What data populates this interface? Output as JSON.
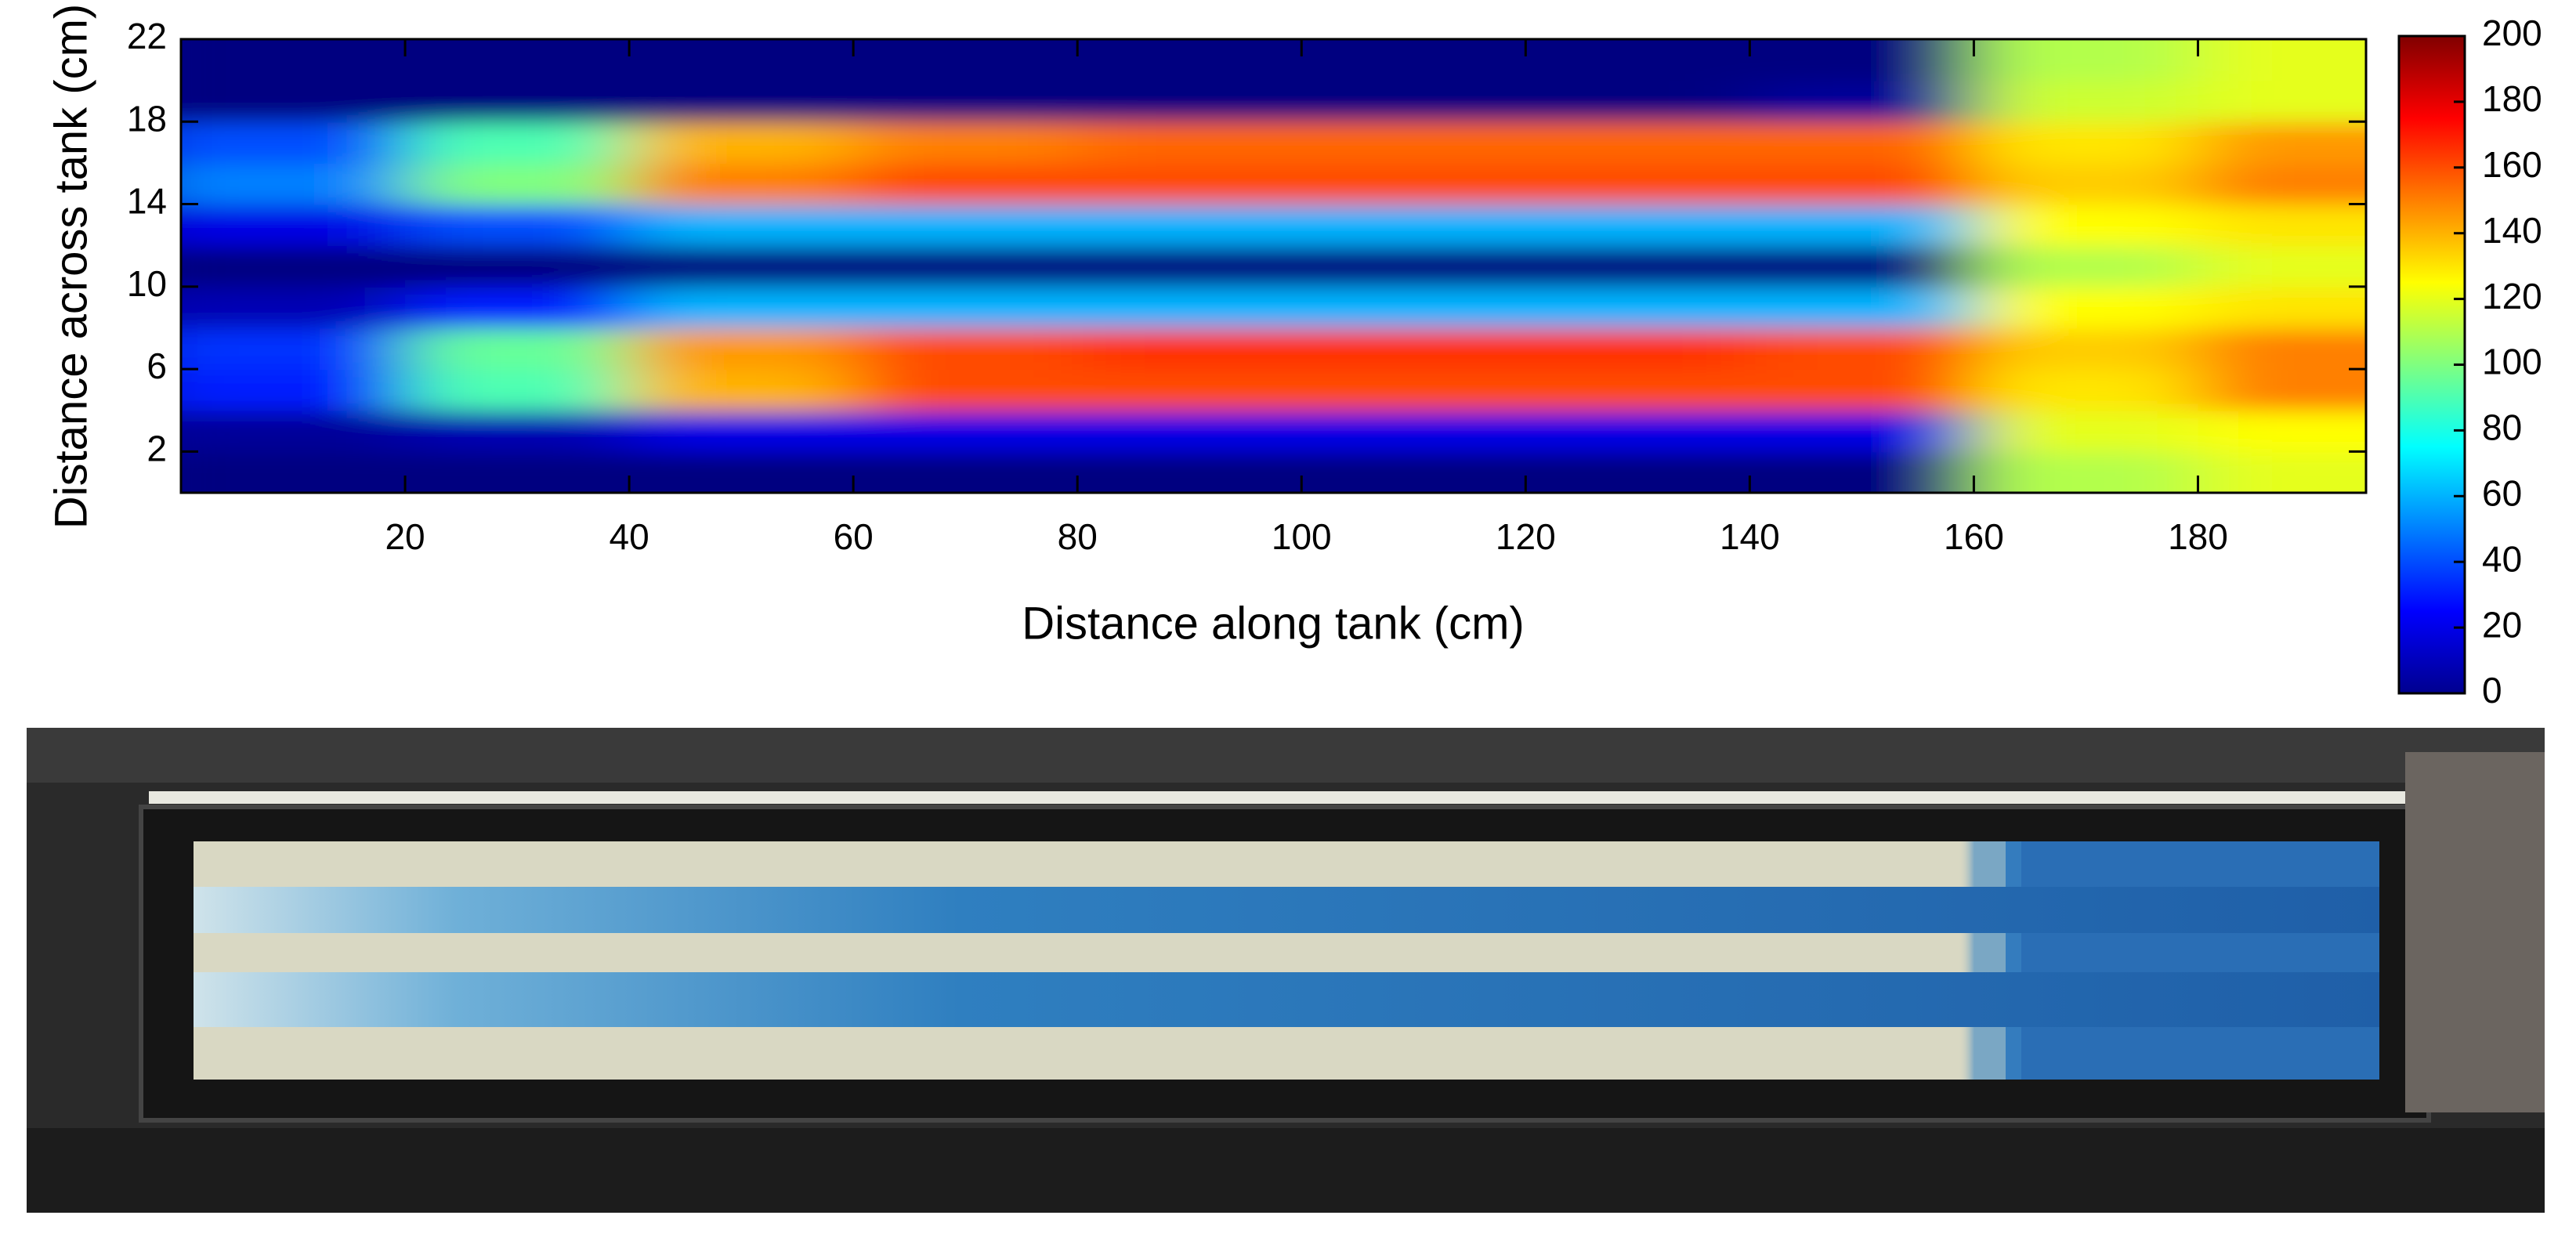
{
  "chart_data": {
    "type": "heatmap",
    "xlabel": "Distance along tank (cm)",
    "ylabel": "Distance across tank (cm)",
    "colormap": "jet",
    "x": [
      10,
      30,
      50,
      70,
      90,
      110,
      130,
      150,
      170,
      190
    ],
    "y": [
      1,
      3,
      5,
      7,
      9,
      11,
      13,
      15,
      17,
      19,
      21
    ],
    "z": [
      [
        0,
        0,
        0,
        0,
        0,
        0,
        0,
        0,
        110,
        120
      ],
      [
        5,
        10,
        20,
        20,
        20,
        20,
        20,
        20,
        120,
        125
      ],
      [
        30,
        90,
        140,
        160,
        160,
        160,
        160,
        160,
        130,
        150
      ],
      [
        35,
        95,
        145,
        160,
        165,
        165,
        165,
        160,
        135,
        150
      ],
      [
        10,
        30,
        60,
        60,
        60,
        60,
        60,
        60,
        125,
        130
      ],
      [
        0,
        0,
        0,
        0,
        0,
        0,
        0,
        0,
        110,
        120
      ],
      [
        20,
        40,
        60,
        60,
        60,
        60,
        60,
        60,
        125,
        130
      ],
      [
        50,
        100,
        150,
        160,
        160,
        160,
        160,
        160,
        135,
        150
      ],
      [
        40,
        90,
        140,
        150,
        155,
        155,
        155,
        155,
        130,
        145
      ],
      [
        0,
        0,
        0,
        0,
        0,
        0,
        0,
        5,
        115,
        120
      ],
      [
        0,
        0,
        0,
        0,
        0,
        0,
        0,
        0,
        110,
        120
      ]
    ],
    "xlim": [
      0,
      195
    ],
    "xticks": [
      20,
      40,
      60,
      80,
      100,
      120,
      140,
      160,
      180
    ],
    "ylim": [
      0,
      22
    ],
    "yticks": [
      2,
      6,
      10,
      14,
      18,
      22
    ],
    "colorbar": {
      "lim": [
        0,
        200
      ],
      "ticks": [
        0,
        20,
        40,
        60,
        80,
        100,
        120,
        140,
        160,
        180,
        200
      ]
    }
  }
}
